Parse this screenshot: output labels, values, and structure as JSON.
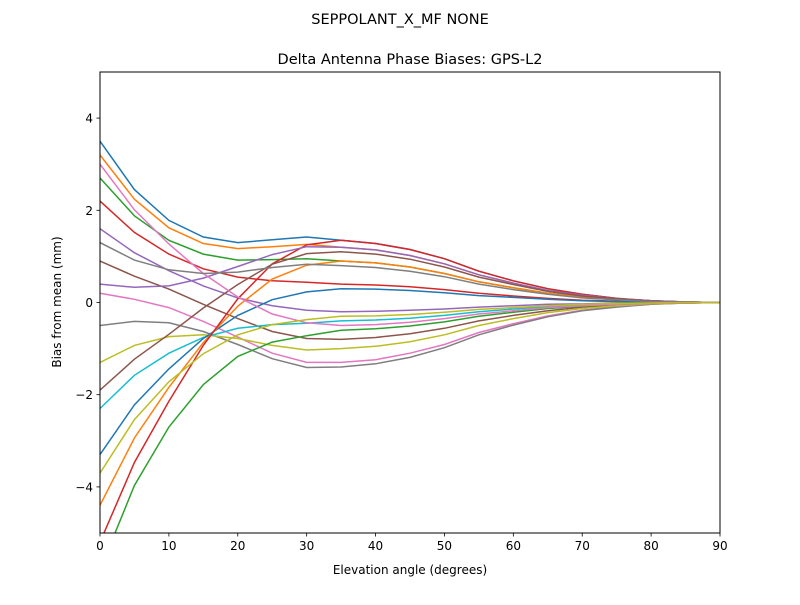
{
  "chart_data": {
    "type": "line",
    "suptitle": "SEPPOLANT_X_MF  NONE",
    "title": "Delta Antenna Phase Biases: GPS-L2",
    "xlabel": "Elevation angle (degrees)",
    "ylabel": "Bias from mean (mm)",
    "xlim": [
      0,
      90
    ],
    "ylim": [
      -5,
      5
    ],
    "xticks": [
      0,
      10,
      20,
      30,
      40,
      50,
      60,
      70,
      80,
      90
    ],
    "yticks": [
      -4,
      -2,
      0,
      2,
      4
    ],
    "ytick_labels": [
      "−4",
      "−2",
      "0",
      "2",
      "4"
    ],
    "grid": false,
    "x": [
      0,
      5,
      10,
      15,
      20,
      25,
      30,
      35,
      40,
      45,
      50,
      55,
      60,
      65,
      70,
      75,
      80,
      85,
      90
    ],
    "colors": [
      "#1f77b4",
      "#ff7f0e",
      "#2ca02c",
      "#d62728",
      "#9467bd",
      "#8c564b",
      "#e377c2",
      "#7f7f7f",
      "#bcbd22",
      "#17becf"
    ],
    "series": [
      {
        "values": [
          3.5,
          2.45,
          1.78,
          1.42,
          1.3,
          1.36,
          1.42,
          1.35,
          1.28,
          1.15,
          0.95,
          0.68,
          0.47,
          0.3,
          0.18,
          0.09,
          0.04,
          0.01,
          0
        ]
      },
      {
        "values": [
          3.2,
          2.24,
          1.62,
          1.28,
          1.17,
          1.21,
          1.26,
          1.2,
          1.14,
          1.02,
          0.84,
          0.6,
          0.42,
          0.26,
          0.16,
          0.08,
          0.04,
          0.01,
          0
        ]
      },
      {
        "values": [
          2.7,
          1.88,
          1.35,
          1.05,
          0.92,
          0.93,
          0.95,
          0.9,
          0.86,
          0.77,
          0.63,
          0.45,
          0.32,
          0.2,
          0.12,
          0.06,
          0.03,
          0.01,
          0
        ]
      },
      {
        "values": [
          2.2,
          1.52,
          1.05,
          0.73,
          0.55,
          0.47,
          0.44,
          0.4,
          0.38,
          0.34,
          0.28,
          0.2,
          0.14,
          0.09,
          0.05,
          0.03,
          0.01,
          0,
          0
        ]
      },
      {
        "values": [
          1.6,
          1.08,
          0.69,
          0.36,
          0.1,
          -0.07,
          -0.17,
          -0.2,
          -0.19,
          -0.17,
          -0.14,
          -0.1,
          -0.07,
          -0.04,
          -0.03,
          -0.01,
          -0.01,
          0,
          0
        ]
      },
      {
        "values": [
          0.9,
          0.57,
          0.29,
          -0.04,
          -0.35,
          -0.63,
          -0.78,
          -0.8,
          -0.76,
          -0.68,
          -0.56,
          -0.4,
          -0.28,
          -0.18,
          -0.1,
          -0.06,
          -0.02,
          -0.01,
          0
        ]
      },
      {
        "values": [
          0.2,
          0.07,
          -0.11,
          -0.41,
          -0.75,
          -1.1,
          -1.3,
          -1.3,
          -1.24,
          -1.1,
          -0.91,
          -0.65,
          -0.46,
          -0.29,
          -0.17,
          -0.09,
          -0.04,
          -0.01,
          0
        ]
      },
      {
        "values": [
          -0.5,
          -0.41,
          -0.44,
          -0.63,
          -0.91,
          -1.22,
          -1.41,
          -1.4,
          -1.33,
          -1.19,
          -0.98,
          -0.7,
          -0.49,
          -0.31,
          -0.18,
          -0.1,
          -0.04,
          -0.01,
          0
        ]
      },
      {
        "values": [
          -1.3,
          -0.93,
          -0.74,
          -0.7,
          -0.78,
          -0.93,
          -1.03,
          -1.0,
          -0.95,
          -0.85,
          -0.7,
          -0.5,
          -0.35,
          -0.22,
          -0.13,
          -0.07,
          -0.03,
          -0.01,
          0
        ]
      },
      {
        "values": [
          -2.3,
          -1.58,
          -1.1,
          -0.76,
          -0.56,
          -0.48,
          -0.45,
          -0.4,
          -0.38,
          -0.34,
          -0.28,
          -0.2,
          -0.14,
          -0.09,
          -0.05,
          -0.03,
          -0.01,
          0,
          0
        ]
      },
      {
        "values": [
          -3.3,
          -2.22,
          -1.44,
          -0.78,
          -0.28,
          0.06,
          0.23,
          0.3,
          0.29,
          0.26,
          0.21,
          0.15,
          0.11,
          0.07,
          0.04,
          0.02,
          0.01,
          0,
          0
        ]
      },
      {
        "values": [
          -4.4,
          -2.94,
          -1.84,
          -0.87,
          -0.08,
          0.51,
          0.81,
          0.9,
          0.86,
          0.77,
          0.63,
          0.45,
          0.32,
          0.2,
          0.12,
          0.06,
          0.03,
          0.01,
          0
        ]
      },
      {
        "values": [
          -5.8,
          -3.97,
          -2.7,
          -1.78,
          -1.17,
          -0.86,
          -0.72,
          -0.6,
          -0.57,
          -0.51,
          -0.42,
          -0.3,
          -0.21,
          -0.13,
          -0.08,
          -0.04,
          -0.02,
          -0.01,
          0
        ]
      },
      {
        "values": [
          -5.2,
          -3.47,
          -2.14,
          -0.93,
          0.08,
          0.84,
          1.25,
          1.35,
          1.28,
          1.15,
          0.95,
          0.68,
          0.47,
          0.3,
          0.18,
          0.09,
          0.04,
          0.01,
          0
        ]
      },
      {
        "values": [
          0.4,
          0.33,
          0.36,
          0.53,
          0.78,
          1.04,
          1.21,
          1.2,
          1.14,
          1.02,
          0.84,
          0.6,
          0.42,
          0.26,
          0.16,
          0.08,
          0.04,
          0.01,
          0
        ]
      },
      {
        "values": [
          -1.9,
          -1.23,
          -0.69,
          -0.12,
          0.39,
          0.83,
          1.06,
          1.1,
          1.05,
          0.94,
          0.77,
          0.55,
          0.39,
          0.24,
          0.14,
          0.08,
          0.03,
          0.01,
          0
        ]
      },
      {
        "values": [
          3.0,
          2.01,
          1.27,
          0.63,
          0.12,
          -0.25,
          -0.44,
          -0.5,
          -0.48,
          -0.43,
          -0.35,
          -0.25,
          -0.18,
          -0.11,
          -0.07,
          -0.04,
          -0.02,
          -0.01,
          0
        ]
      },
      {
        "values": [
          1.3,
          0.92,
          0.71,
          0.63,
          0.66,
          0.76,
          0.83,
          0.8,
          0.76,
          0.68,
          0.56,
          0.4,
          0.28,
          0.18,
          0.1,
          0.06,
          0.02,
          0.01,
          0
        ]
      },
      {
        "values": [
          -3.7,
          -2.54,
          -1.72,
          -1.11,
          -0.7,
          -0.48,
          -0.37,
          -0.3,
          -0.29,
          -0.26,
          -0.21,
          -0.15,
          -0.11,
          -0.07,
          -0.04,
          -0.02,
          -0.01,
          0,
          0
        ]
      }
    ]
  }
}
